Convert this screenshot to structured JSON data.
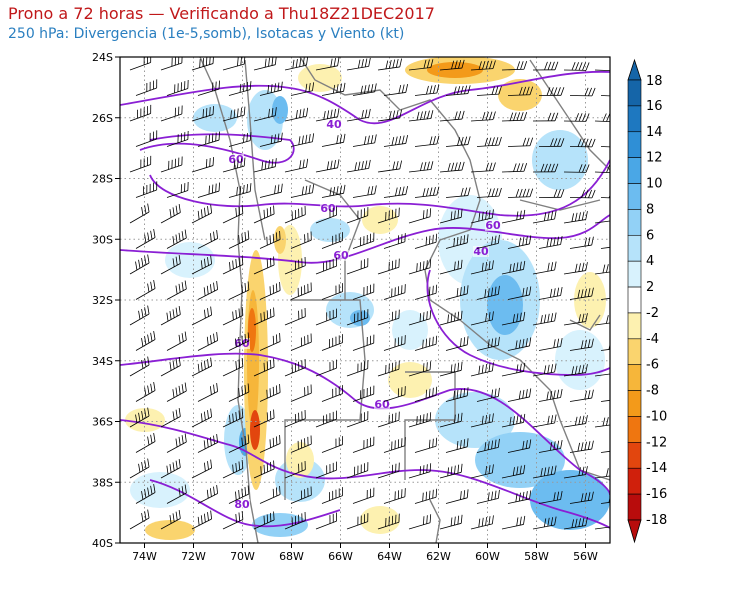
{
  "title": {
    "line1": "Prono a 72 horas — Verificando a Thu18Z21DEC2017",
    "line2": "250 hPa: Divergencia (1e-5,somb), Isotacas y Viento (kt)"
  },
  "map": {
    "lon_range": [
      -75,
      -55
    ],
    "lat_range": [
      -40,
      -24
    ],
    "lon_ticks": [
      "74W",
      "72W",
      "70W",
      "68W",
      "66W",
      "64W",
      "62W",
      "60W",
      "58W",
      "56W"
    ],
    "lat_ticks": [
      "24S",
      "26S",
      "28S",
      "30S",
      "32S",
      "34S",
      "36S",
      "38S",
      "40S"
    ],
    "isotach_labels": [
      "40",
      "60",
      "60",
      "60",
      "60",
      "40",
      "60",
      "60",
      "80"
    ],
    "isotach_color": "#8a1fd4",
    "border_color": "#808080",
    "barb_color": "#000000"
  },
  "colorbar": {
    "labels": [
      "18",
      "16",
      "14",
      "12",
      "10",
      "8",
      "6",
      "4",
      "2",
      "-2",
      "-4",
      "-6",
      "-8",
      "-10",
      "-12",
      "-14",
      "-16",
      "-18"
    ],
    "colors": [
      "#1565a8",
      "#1e78c0",
      "#2f8fd6",
      "#4aa7e6",
      "#6cbcf0",
      "#92d1f6",
      "#b6e3fa",
      "#d8f2fd",
      "#ffffff",
      "#fdf1b0",
      "#fad46e",
      "#f6b63a",
      "#f39a1a",
      "#ef7610",
      "#e2460e",
      "#d0200c",
      "#b80c0c"
    ],
    "top_arrow_color": "#1565a8",
    "bottom_arrow_color": "#b80c0c"
  }
}
